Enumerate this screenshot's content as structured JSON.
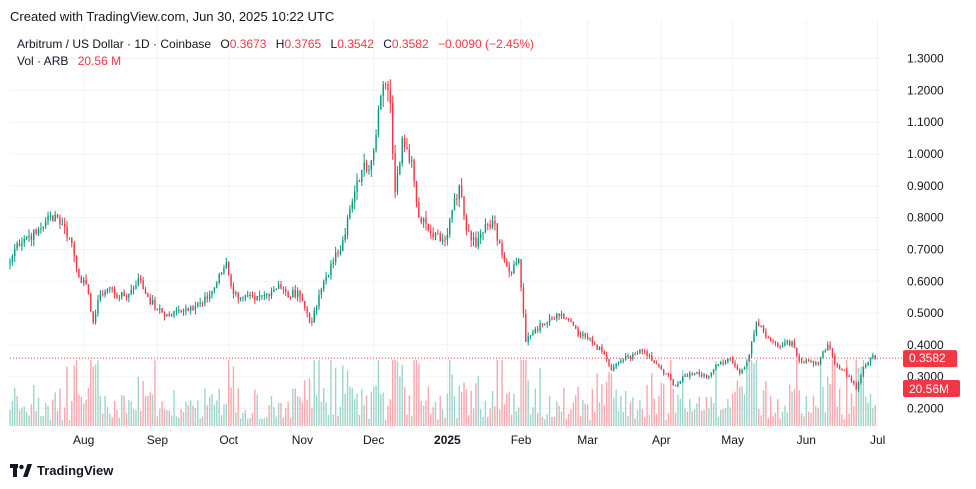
{
  "header": {
    "created": "Created with TradingView.com, Jun 30, 2025 10:22 UTC"
  },
  "legend": {
    "symbol": "Arbitrum / US Dollar · 1D · Coinbase",
    "o_label": "O",
    "o_value": "0.3673",
    "h_label": "H",
    "h_value": "0.3765",
    "l_label": "L",
    "l_value": "0.3542",
    "c_label": "C",
    "c_value": "0.3582",
    "change": "−0.0090 (−2.45%)",
    "vol_label": "Vol · ARB",
    "vol_value": "20.56 M"
  },
  "footer": {
    "brand": "TradingView"
  },
  "colors": {
    "up": "#089981",
    "down": "#F23645",
    "up_vol": "#9FD6CC",
    "down_vol": "#F7A9AF",
    "grid": "#F0F3FA"
  },
  "chart_data": {
    "type": "candlestick",
    "title": "Arbitrum / US Dollar · 1D · Coinbase",
    "yticks": [
      "1.3000",
      "1.2000",
      "1.1000",
      "1.0000",
      "0.9000",
      "0.8000",
      "0.7000",
      "0.6000",
      "0.5000",
      "0.4000",
      "0.3000",
      "0.2000"
    ],
    "ylim": [
      0.145,
      1.39
    ],
    "xlim": [
      "2024-07-01",
      "2025-07-02"
    ],
    "xticks": [
      {
        "label": "Aug",
        "date": "2024-08-01",
        "bold": false
      },
      {
        "label": "Sep",
        "date": "2024-09-01",
        "bold": false
      },
      {
        "label": "Oct",
        "date": "2024-10-01",
        "bold": false
      },
      {
        "label": "Nov",
        "date": "2024-11-01",
        "bold": false
      },
      {
        "label": "Dec",
        "date": "2024-12-01",
        "bold": false
      },
      {
        "label": "2025",
        "date": "2025-01-01",
        "bold": true
      },
      {
        "label": "Feb",
        "date": "2025-02-01",
        "bold": false
      },
      {
        "label": "Mar",
        "date": "2025-03-01",
        "bold": false
      },
      {
        "label": "Apr",
        "date": "2025-04-01",
        "bold": false
      },
      {
        "label": "May",
        "date": "2025-05-01",
        "bold": false
      },
      {
        "label": "Jun",
        "date": "2025-06-01",
        "bold": false
      },
      {
        "label": "Jul",
        "date": "2025-07-01",
        "bold": false
      }
    ],
    "last_price": 0.3582,
    "last_price_label": "0.3582",
    "last_volume_label": "20.56M",
    "close_anchors": [
      [
        "2024-07-01",
        0.66
      ],
      [
        "2024-07-04",
        0.72
      ],
      [
        "2024-07-08",
        0.74
      ],
      [
        "2024-07-12",
        0.75
      ],
      [
        "2024-07-16",
        0.79
      ],
      [
        "2024-07-20",
        0.81
      ],
      [
        "2024-07-23",
        0.78
      ],
      [
        "2024-07-27",
        0.72
      ],
      [
        "2024-07-29",
        0.64
      ],
      [
        "2024-08-03",
        0.56
      ],
      [
        "2024-08-05",
        0.47
      ],
      [
        "2024-08-08",
        0.56
      ],
      [
        "2024-08-12",
        0.58
      ],
      [
        "2024-08-16",
        0.55
      ],
      [
        "2024-08-20",
        0.56
      ],
      [
        "2024-08-24",
        0.61
      ],
      [
        "2024-08-28",
        0.55
      ],
      [
        "2024-09-01",
        0.51
      ],
      [
        "2024-09-06",
        0.49
      ],
      [
        "2024-09-10",
        0.51
      ],
      [
        "2024-09-15",
        0.52
      ],
      [
        "2024-09-20",
        0.53
      ],
      [
        "2024-09-25",
        0.58
      ],
      [
        "2024-09-30",
        0.66
      ],
      [
        "2024-10-03",
        0.56
      ],
      [
        "2024-10-07",
        0.55
      ],
      [
        "2024-10-12",
        0.54
      ],
      [
        "2024-10-17",
        0.56
      ],
      [
        "2024-10-22",
        0.59
      ],
      [
        "2024-10-26",
        0.55
      ],
      [
        "2024-10-30",
        0.57
      ],
      [
        "2024-11-03",
        0.5
      ],
      [
        "2024-11-05",
        0.47
      ],
      [
        "2024-11-10",
        0.6
      ],
      [
        "2024-11-14",
        0.66
      ],
      [
        "2024-11-18",
        0.73
      ],
      [
        "2024-11-22",
        0.85
      ],
      [
        "2024-11-26",
        0.95
      ],
      [
        "2024-11-30",
        0.98
      ],
      [
        "2024-12-03",
        1.14
      ],
      [
        "2024-12-05",
        1.22
      ],
      [
        "2024-12-08",
        1.16
      ],
      [
        "2024-12-10",
        0.88
      ],
      [
        "2024-12-13",
        1.05
      ],
      [
        "2024-12-17",
        0.98
      ],
      [
        "2024-12-20",
        0.8
      ],
      [
        "2024-12-23",
        0.78
      ],
      [
        "2024-12-27",
        0.75
      ],
      [
        "2024-12-31",
        0.73
      ],
      [
        "2025-01-04",
        0.86
      ],
      [
        "2025-01-06",
        0.9
      ],
      [
        "2025-01-09",
        0.76
      ],
      [
        "2025-01-13",
        0.71
      ],
      [
        "2025-01-17",
        0.78
      ],
      [
        "2025-01-20",
        0.79
      ],
      [
        "2025-01-23",
        0.72
      ],
      [
        "2025-01-27",
        0.63
      ],
      [
        "2025-01-31",
        0.67
      ],
      [
        "2025-02-03",
        0.41
      ],
      [
        "2025-02-07",
        0.45
      ],
      [
        "2025-02-12",
        0.47
      ],
      [
        "2025-02-17",
        0.49
      ],
      [
        "2025-02-21",
        0.48
      ],
      [
        "2025-02-25",
        0.43
      ],
      [
        "2025-03-01",
        0.42
      ],
      [
        "2025-03-04",
        0.4
      ],
      [
        "2025-03-08",
        0.37
      ],
      [
        "2025-03-11",
        0.32
      ],
      [
        "2025-03-15",
        0.35
      ],
      [
        "2025-03-20",
        0.37
      ],
      [
        "2025-03-25",
        0.38
      ],
      [
        "2025-03-30",
        0.34
      ],
      [
        "2025-04-03",
        0.31
      ],
      [
        "2025-04-07",
        0.27
      ],
      [
        "2025-04-10",
        0.3
      ],
      [
        "2025-04-15",
        0.31
      ],
      [
        "2025-04-20",
        0.3
      ],
      [
        "2025-04-25",
        0.34
      ],
      [
        "2025-04-30",
        0.36
      ],
      [
        "2025-05-04",
        0.31
      ],
      [
        "2025-05-08",
        0.37
      ],
      [
        "2025-05-11",
        0.47
      ],
      [
        "2025-05-14",
        0.44
      ],
      [
        "2025-05-18",
        0.41
      ],
      [
        "2025-05-22",
        0.4
      ],
      [
        "2025-05-26",
        0.41
      ],
      [
        "2025-05-29",
        0.35
      ],
      [
        "2025-06-02",
        0.35
      ],
      [
        "2025-06-06",
        0.34
      ],
      [
        "2025-06-10",
        0.4
      ],
      [
        "2025-06-13",
        0.34
      ],
      [
        "2025-06-17",
        0.32
      ],
      [
        "2025-06-22",
        0.26
      ],
      [
        "2025-06-25",
        0.33
      ],
      [
        "2025-06-28",
        0.36
      ],
      [
        "2025-06-30",
        0.3582
      ]
    ]
  }
}
